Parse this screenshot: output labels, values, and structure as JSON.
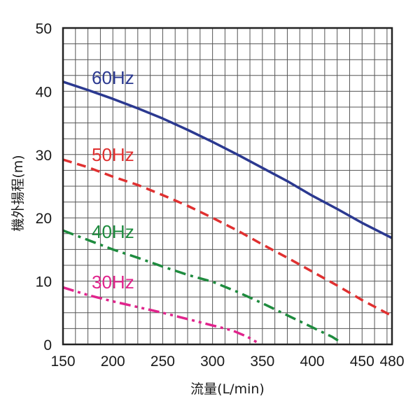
{
  "chart_data": {
    "type": "line",
    "xlabel": "流量(L/min)",
    "ylabel": "機外揚程(m)",
    "xlim": [
      150,
      480
    ],
    "ylim": [
      0,
      50
    ],
    "x_ticks": [
      "150",
      "200",
      "250",
      "300",
      "350",
      "400",
      "450",
      "480"
    ],
    "y_ticks": [
      "0",
      "10",
      "20",
      "30",
      "40",
      "50"
    ],
    "grid": true,
    "series": [
      {
        "name": "60Hz",
        "color": "#2b3990",
        "style": "solid",
        "x": [
          150,
          175,
          200,
          225,
          250,
          275,
          300,
          325,
          350,
          375,
          400,
          425,
          450,
          480
        ],
        "y": [
          41.5,
          40.2,
          38.8,
          37.3,
          35.7,
          33.9,
          32.0,
          30.0,
          27.9,
          25.8,
          23.5,
          21.4,
          19.2,
          16.8
        ]
      },
      {
        "name": "50Hz",
        "color": "#e03030",
        "style": "dashed",
        "x": [
          150,
          175,
          200,
          225,
          250,
          275,
          300,
          325,
          350,
          375,
          400,
          425,
          450,
          480
        ],
        "y": [
          29.2,
          28.0,
          26.5,
          25.2,
          23.6,
          21.9,
          20.0,
          18.0,
          15.8,
          13.7,
          11.5,
          9.3,
          7.0,
          4.5
        ]
      },
      {
        "name": "40Hz",
        "color": "#1e8b3e",
        "style": "dashdot",
        "x": [
          150,
          175,
          200,
          225,
          250,
          275,
          300,
          325,
          350,
          375,
          400,
          420,
          430
        ],
        "y": [
          18.0,
          16.5,
          15.0,
          13.7,
          12.3,
          11.0,
          9.9,
          8.3,
          6.5,
          4.6,
          2.7,
          1.2,
          0.2
        ]
      },
      {
        "name": "30Hz",
        "color": "#e0248c",
        "style": "dashdotdot",
        "x": [
          150,
          175,
          200,
          225,
          250,
          275,
          300,
          320,
          335,
          345
        ],
        "y": [
          9.0,
          7.8,
          6.8,
          5.9,
          5.0,
          4.0,
          3.0,
          2.2,
          1.2,
          0.3
        ]
      }
    ]
  }
}
